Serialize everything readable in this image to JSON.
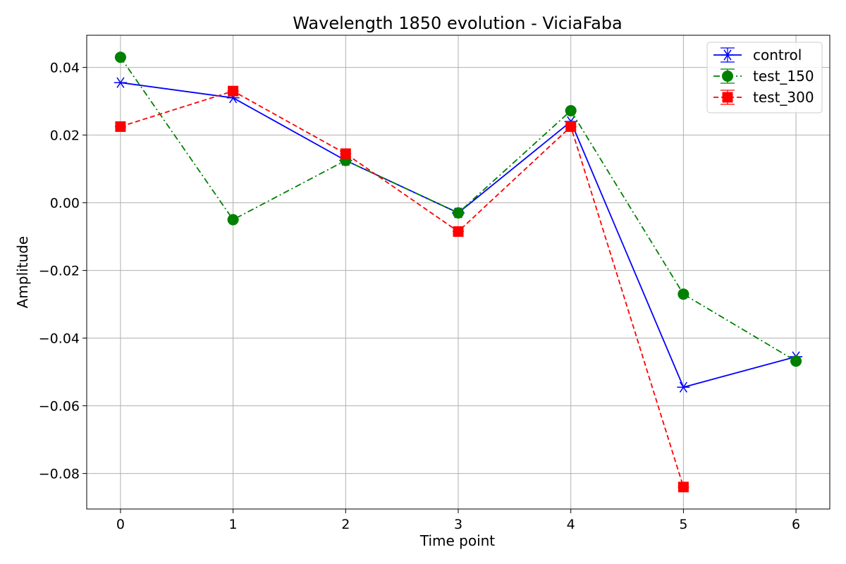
{
  "chart_data": {
    "type": "line",
    "title": "Wavelength 1850 evolution - ViciaFaba",
    "xlabel": "Time point",
    "ylabel": "Amplitude",
    "xlim": [
      -0.3,
      6.3
    ],
    "ylim": [
      -0.0905,
      0.0495
    ],
    "x_ticks": [
      0,
      1,
      2,
      3,
      4,
      5,
      6
    ],
    "y_ticks": [
      0.04,
      0.02,
      0.0,
      -0.02,
      -0.04,
      -0.06,
      -0.08
    ],
    "x_tick_labels": [
      "0",
      "1",
      "2",
      "3",
      "4",
      "5",
      "6"
    ],
    "y_tick_labels": [
      "0.04",
      "0.02",
      "0.00",
      "−0.02",
      "−0.04",
      "−0.06",
      "−0.08"
    ],
    "grid": true,
    "legend_position": "top-right",
    "series": [
      {
        "name": "control",
        "color": "#0000ff",
        "marker": "x-star",
        "linestyle": "solid",
        "x": [
          0,
          1,
          2,
          3,
          4,
          5,
          6
        ],
        "values": [
          0.0355,
          0.031,
          0.0125,
          -0.003,
          0.024,
          -0.0545,
          -0.0455
        ]
      },
      {
        "name": "test_150",
        "color": "#008000",
        "marker": "circle",
        "linestyle": "dashdot",
        "x": [
          0,
          1,
          2,
          3,
          4,
          5,
          6
        ],
        "values": [
          0.043,
          -0.005,
          0.0125,
          -0.003,
          0.0272,
          -0.027,
          -0.0468
        ]
      },
      {
        "name": "test_300",
        "color": "#ff0000",
        "marker": "square",
        "linestyle": "dashed",
        "x": [
          0,
          1,
          2,
          3,
          4,
          5
        ],
        "values": [
          0.0225,
          0.033,
          0.0145,
          -0.0085,
          0.0225,
          -0.084
        ]
      }
    ]
  }
}
